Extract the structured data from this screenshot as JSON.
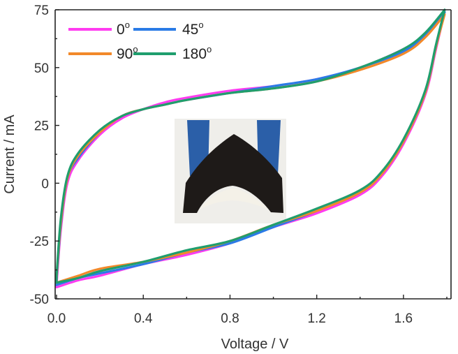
{
  "chart_data": {
    "type": "line",
    "xlabel": "Voltage / V",
    "ylabel": "Current / mA",
    "xlim": [
      0.0,
      1.8
    ],
    "ylim": [
      -50,
      75
    ],
    "x_ticks": [
      "0.0",
      "0.4",
      "0.8",
      "1.2",
      "1.6"
    ],
    "y_ticks": [
      "-50",
      "-25",
      "0",
      "25",
      "50",
      "75"
    ],
    "grid": false,
    "legend_position": "top-left",
    "inset": "photo of bent black electrode held by blue clips",
    "series": [
      {
        "name": "0",
        "unit": "o",
        "color": "#ff3cf0",
        "upper": {
          "x": [
            0.0,
            0.02,
            0.05,
            0.1,
            0.2,
            0.3,
            0.4,
            0.5,
            0.6,
            0.8,
            1.0,
            1.2,
            1.4,
            1.6,
            1.7,
            1.79
          ],
          "y": [
            -44,
            -20,
            0,
            10,
            21,
            28,
            32,
            35,
            37,
            40,
            42,
            45,
            50,
            58,
            64,
            74
          ]
        },
        "lower": {
          "x": [
            0.0,
            0.1,
            0.2,
            0.4,
            0.6,
            0.8,
            1.0,
            1.2,
            1.4,
            1.5,
            1.6,
            1.7,
            1.75,
            1.79
          ],
          "y": [
            -45,
            -42,
            -40,
            -35,
            -31,
            -26,
            -19,
            -13,
            -5,
            3,
            17,
            38,
            58,
            74
          ]
        }
      },
      {
        "name": "45",
        "unit": "o",
        "color": "#2a7be6",
        "upper": {
          "x": [
            0.0,
            0.02,
            0.05,
            0.1,
            0.2,
            0.3,
            0.4,
            0.5,
            0.6,
            0.8,
            1.0,
            1.2,
            1.4,
            1.6,
            1.7,
            1.79
          ],
          "y": [
            -42,
            -18,
            2,
            11,
            22,
            29,
            32,
            34,
            36,
            39,
            42,
            45,
            50,
            57,
            64,
            74
          ]
        },
        "lower": {
          "x": [
            0.0,
            0.1,
            0.2,
            0.4,
            0.6,
            0.8,
            1.0,
            1.2,
            1.4,
            1.5,
            1.6,
            1.7,
            1.75,
            1.79
          ],
          "y": [
            -44,
            -41,
            -39,
            -35,
            -30,
            -26,
            -19,
            -12,
            -4,
            4,
            18,
            39,
            59,
            74
          ]
        }
      },
      {
        "name": "90",
        "unit": "o",
        "color": "#f2892a",
        "upper": {
          "x": [
            0.0,
            0.02,
            0.05,
            0.1,
            0.2,
            0.3,
            0.4,
            0.5,
            0.6,
            0.8,
            1.0,
            1.2,
            1.4,
            1.6,
            1.7,
            1.79
          ],
          "y": [
            -41,
            -17,
            2,
            12,
            22,
            29,
            32,
            34,
            36,
            39,
            41,
            44,
            49,
            56,
            63,
            73
          ]
        },
        "lower": {
          "x": [
            0.0,
            0.1,
            0.2,
            0.4,
            0.6,
            0.8,
            1.0,
            1.2,
            1.4,
            1.5,
            1.6,
            1.7,
            1.75,
            1.79
          ],
          "y": [
            -43,
            -40,
            -37,
            -34,
            -30,
            -25,
            -18,
            -12,
            -4,
            4,
            18,
            39,
            59,
            73
          ]
        }
      },
      {
        "name": "180",
        "unit": "o",
        "color": "#1f9e6e",
        "upper": {
          "x": [
            0.0,
            0.02,
            0.05,
            0.1,
            0.2,
            0.3,
            0.4,
            0.5,
            0.6,
            0.8,
            1.0,
            1.2,
            1.4,
            1.6,
            1.7,
            1.79
          ],
          "y": [
            -40,
            -15,
            3,
            13,
            23,
            29,
            32,
            34,
            36,
            39,
            41,
            44,
            50,
            58,
            65,
            75
          ]
        },
        "lower": {
          "x": [
            0.0,
            0.1,
            0.2,
            0.4,
            0.6,
            0.8,
            1.0,
            1.2,
            1.4,
            1.5,
            1.6,
            1.7,
            1.75,
            1.79
          ],
          "y": [
            -43,
            -41,
            -38,
            -34,
            -29,
            -25,
            -18,
            -11,
            -3,
            5,
            19,
            40,
            60,
            75
          ]
        }
      }
    ]
  }
}
